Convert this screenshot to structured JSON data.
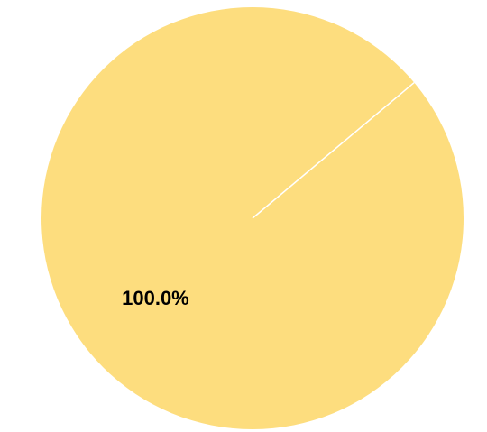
{
  "chart_data": {
    "type": "pie",
    "title": "",
    "slices": [
      {
        "label": "",
        "value": 100.0,
        "percent_label": "100.0%",
        "color": "#FDDD7E"
      }
    ],
    "start_angle_deg": 40,
    "separator_color": "#ffffff",
    "legend": "none"
  }
}
